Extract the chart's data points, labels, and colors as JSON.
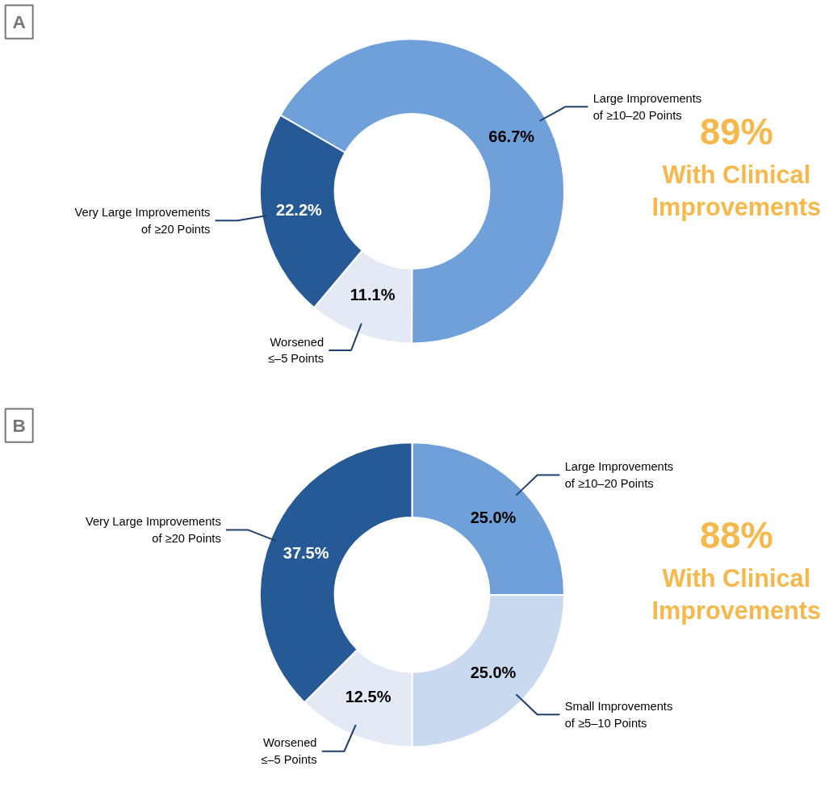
{
  "chart_data": [
    {
      "type": "donut",
      "title": "A",
      "categories": [
        "Large Improvements of ≥10–20 Points",
        "Worsened ≤–5 Points",
        "Very Large Improvements of ≥20 Points"
      ],
      "values": [
        66.7,
        11.1,
        22.2
      ],
      "colors": [
        "#6fa0da",
        "#e3eaf6",
        "#265a97"
      ],
      "value_labels": [
        "66.7%",
        "11.1%",
        "22.2%"
      ],
      "annotations": [
        "89%",
        "With Clinical Improvements"
      ]
    },
    {
      "type": "donut",
      "title": "B",
      "categories": [
        "Large Improvements of ≥10–20 Points",
        "Small Improvements of ≥5–10 Points",
        "Worsened ≤–5 Points",
        "Very Large Improvements of ≥20 Points"
      ],
      "values": [
        25.0,
        25.0,
        12.5,
        37.5
      ],
      "colors": [
        "#6fa0da",
        "#c9d9f0",
        "#e3eaf6",
        "#265a97"
      ],
      "value_labels": [
        "25.0%",
        "25.0%",
        "12.5%",
        "37.5%"
      ],
      "annotations": [
        "88%",
        "With Clinical Improvements"
      ]
    }
  ]
}
